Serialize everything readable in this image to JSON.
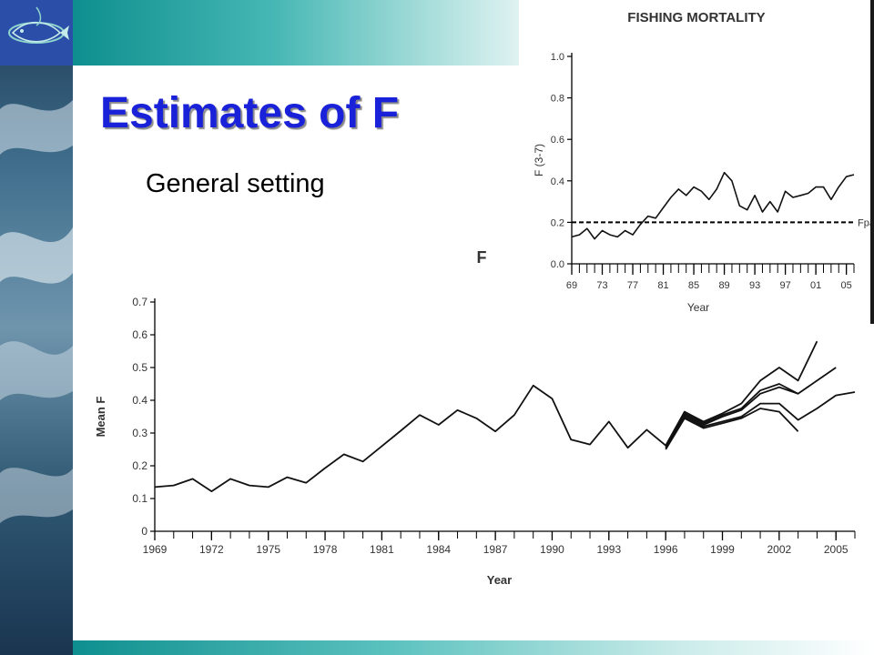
{
  "slide": {
    "title": "Estimates of F",
    "subtitle": "General setting",
    "colors": {
      "title": "#1a22d9",
      "band": "#0e8f8f",
      "logo_bg": "#2b4fa8"
    },
    "logo_icon": "fish-logo-icon"
  },
  "chart_data": [
    {
      "type": "line",
      "title": "FISHING MORTALITY",
      "xlabel": "Year",
      "ylabel": "F (3-7)",
      "xlim": [
        1969,
        2006
      ],
      "ylim": [
        0,
        1.0
      ],
      "yticks": [
        "0.0",
        "0.2",
        "0.4",
        "0.6",
        "0.8",
        "1.0"
      ],
      "xtick_labels": [
        "69",
        "73",
        "77",
        "81",
        "85",
        "89",
        "93",
        "97",
        "01",
        "05"
      ],
      "grid": false,
      "series": [
        {
          "x": [
            1969,
            1970,
            1971,
            1972,
            1973,
            1974,
            1975,
            1976,
            1977,
            1978,
            1979,
            1980,
            1981,
            1982,
            1983,
            1984,
            1985,
            1986,
            1987,
            1988,
            1989,
            1990,
            1991,
            1992,
            1993,
            1994,
            1995,
            1996,
            1997,
            1998,
            1999,
            2000,
            2001,
            2002,
            2003,
            2004,
            2005,
            2006
          ],
          "values": [
            0.13,
            0.14,
            0.17,
            0.12,
            0.16,
            0.14,
            0.13,
            0.16,
            0.14,
            0.19,
            0.23,
            0.22,
            0.27,
            0.32,
            0.36,
            0.33,
            0.37,
            0.35,
            0.31,
            0.36,
            0.44,
            0.4,
            0.28,
            0.26,
            0.33,
            0.25,
            0.3,
            0.25,
            0.35,
            0.32,
            0.33,
            0.34,
            0.37,
            0.37,
            0.31,
            0.37,
            0.42,
            0.43
          ]
        }
      ],
      "reference_line": {
        "label": "Fpa",
        "value": 0.2
      }
    },
    {
      "type": "line",
      "corner_label": "F",
      "xlabel": "Year",
      "ylabel": "Mean F",
      "xlim": [
        1969,
        2006
      ],
      "ylim": [
        0,
        0.7
      ],
      "yticks": [
        "0",
        "0.1",
        "0.2",
        "0.3",
        "0.4",
        "0.5",
        "0.6",
        "0.7"
      ],
      "xtick_labels": [
        "1969",
        "1972",
        "1975",
        "1978",
        "1981",
        "1984",
        "1987",
        "1990",
        "1993",
        "1996",
        "1999",
        "2002",
        "2005"
      ],
      "grid": false,
      "series": [
        {
          "x": [
            1969,
            1970,
            1971,
            1972,
            1973,
            1974,
            1975,
            1976,
            1977,
            1978,
            1979,
            1980,
            1981,
            1982,
            1983,
            1984,
            1985,
            1986,
            1987,
            1988,
            1989,
            1990,
            1991,
            1992,
            1993,
            1994,
            1995,
            1996,
            1997,
            1998,
            1999,
            2000,
            2001,
            2002,
            2003,
            2004
          ],
          "values": [
            0.135,
            0.14,
            0.16,
            0.122,
            0.16,
            0.14,
            0.135,
            0.165,
            0.148,
            0.193,
            0.235,
            0.213,
            0.26,
            0.307,
            0.355,
            0.325,
            0.37,
            0.345,
            0.305,
            0.355,
            0.445,
            0.405,
            0.28,
            0.265,
            0.335,
            0.255,
            0.31,
            0.262,
            0.365,
            0.335,
            0.36,
            0.39,
            0.46,
            0.5,
            0.46,
            0.58
          ]
        },
        {
          "x": [
            1996,
            1997,
            1998,
            1999,
            2000,
            2001,
            2002,
            2003,
            2004,
            2005
          ],
          "values": [
            0.26,
            0.36,
            0.33,
            0.355,
            0.375,
            0.43,
            0.45,
            0.42,
            0.46,
            0.5
          ]
        },
        {
          "x": [
            1996,
            1997,
            1998,
            1999,
            2000,
            2001,
            2002,
            2003
          ],
          "values": [
            0.255,
            0.355,
            0.325,
            0.35,
            0.37,
            0.42,
            0.44,
            0.42
          ]
        },
        {
          "x": [
            1996,
            1997,
            1998,
            1999,
            2000,
            2001,
            2002,
            2003,
            2004,
            2005,
            2006
          ],
          "values": [
            0.255,
            0.35,
            0.32,
            0.335,
            0.35,
            0.39,
            0.39,
            0.34,
            0.375,
            0.415,
            0.425
          ]
        },
        {
          "x": [
            1996,
            1997,
            1998,
            1999,
            2000,
            2001,
            2002,
            2003
          ],
          "values": [
            0.25,
            0.345,
            0.315,
            0.33,
            0.345,
            0.375,
            0.365,
            0.305
          ]
        }
      ]
    }
  ]
}
